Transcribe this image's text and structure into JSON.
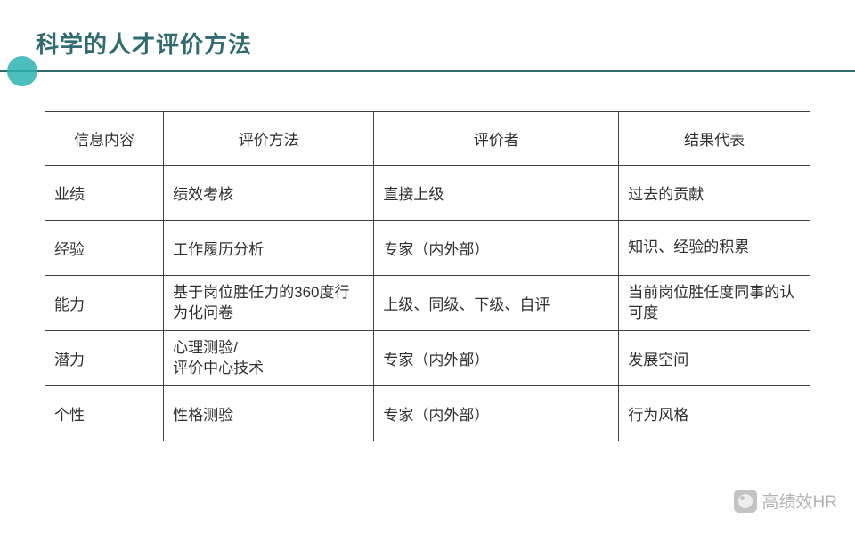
{
  "title": "科学的人才评价方法",
  "colors": {
    "accent": "#2f6b6f",
    "circle": "#2bb3b1",
    "border": "#404040",
    "text": "#2f2f2f"
  },
  "table": {
    "headers": [
      "信息内容",
      "评价方法",
      "评价者",
      "结果代表"
    ],
    "rows": [
      {
        "c1": "业绩",
        "c2": "绩效考核",
        "c3": "直接上级",
        "c4": "过去的贡献"
      },
      {
        "c1": "经验",
        "c2": "工作履历分析",
        "c3": "专家（内外部）",
        "c4": "知识、经验的积累"
      },
      {
        "c1": "能力",
        "c2": "基于岗位胜任力的360度行为化问卷",
        "c3": "上级、同级、下级、自评",
        "c4": "当前岗位胜任度同事的认可度"
      },
      {
        "c1": "潜力",
        "c2": "心理测验/\n评价中心技术",
        "c3": "专家（内外部）",
        "c4": "发展空间"
      },
      {
        "c1": "个性",
        "c2": "性格测验",
        "c3": "专家（内外部）",
        "c4": "行为风格"
      }
    ]
  },
  "watermark": "高绩效HR"
}
